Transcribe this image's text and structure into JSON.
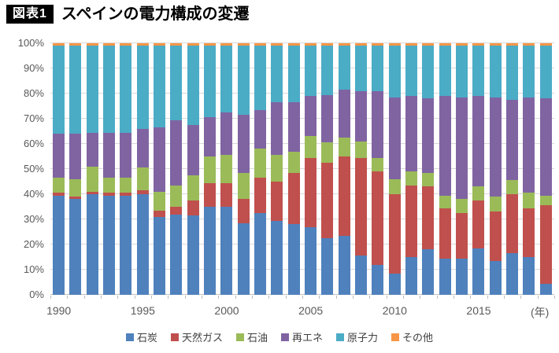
{
  "title": {
    "tag": "図表1",
    "text": "スペインの電力構成の変遷"
  },
  "chart_data": {
    "type": "bar",
    "stacked": true,
    "unit": "%",
    "grid": true,
    "legend_position": "bottom",
    "ylim": [
      0,
      100
    ],
    "y_ticks": [
      "0%",
      "10%",
      "20%",
      "30%",
      "40%",
      "50%",
      "60%",
      "70%",
      "80%",
      "90%",
      "100%"
    ],
    "x_axis_suffix": "(年)",
    "x_tick_labels": [
      "1990",
      "1995",
      "2000",
      "2005",
      "2010",
      "2015"
    ],
    "x_tick_positions": [
      0,
      5,
      10,
      15,
      20,
      25
    ],
    "categories": [
      1990,
      1991,
      1992,
      1993,
      1994,
      1995,
      1996,
      1997,
      1998,
      1999,
      2000,
      2001,
      2002,
      2003,
      2004,
      2005,
      2006,
      2007,
      2008,
      2009,
      2010,
      2011,
      2012,
      2013,
      2014,
      2015,
      2016,
      2017,
      2018,
      2019
    ],
    "series": [
      {
        "name": "石炭",
        "key": "coal",
        "color": "#4F81BD",
        "values": [
          39.5,
          38,
          40,
          39.5,
          39.5,
          40,
          31,
          32,
          31.5,
          35,
          35,
          28.5,
          32.5,
          29.5,
          28,
          27,
          22.5,
          23.5,
          15.5,
          12,
          8.5,
          15,
          18,
          14.5,
          14.5,
          18.5,
          13.5,
          16.5,
          15,
          4.5
        ]
      },
      {
        "name": "天然ガス",
        "key": "natural-gas",
        "color": "#C0504D",
        "values": [
          1,
          1,
          1,
          1,
          1,
          1.5,
          2.5,
          3,
          6,
          9.5,
          9.5,
          9.5,
          14,
          15.5,
          20.5,
          27.5,
          30,
          31.5,
          39,
          37,
          31.5,
          28.5,
          25,
          20,
          18,
          19,
          19.5,
          23.5,
          19.5,
          31
        ]
      },
      {
        "name": "石油",
        "key": "oil",
        "color": "#9BBB59",
        "values": [
          6,
          7,
          10,
          6,
          6,
          9,
          7.5,
          8.5,
          10,
          10.5,
          11,
          10.5,
          11.5,
          10.5,
          8.5,
          8.5,
          8,
          7.5,
          6.5,
          5.5,
          6,
          5.5,
          5.5,
          5,
          5.5,
          5.5,
          6,
          5.5,
          6,
          4
        ]
      },
      {
        "name": "再エネ",
        "key": "renewables",
        "color": "#8064A2",
        "values": [
          17.5,
          18,
          13.5,
          18,
          18,
          15.5,
          25.5,
          26,
          20,
          15.5,
          17,
          23,
          15.5,
          21,
          19.5,
          16,
          19,
          19,
          20,
          26.5,
          32.5,
          30,
          29.5,
          39.5,
          40.5,
          36,
          39.5,
          32,
          38,
          38.5
        ]
      },
      {
        "name": "原子力",
        "key": "nuclear",
        "color": "#4BACC6",
        "values": [
          35,
          35,
          34.5,
          34.5,
          34.5,
          33,
          32.5,
          29.5,
          31.5,
          28.5,
          26.5,
          27.5,
          25.5,
          22.5,
          22.5,
          20,
          19.5,
          17.5,
          18,
          18,
          20.5,
          20,
          21,
          20,
          20.5,
          20,
          20.5,
          21.5,
          20.5,
          21
        ]
      },
      {
        "name": "その他",
        "key": "other",
        "color": "#F79646",
        "values": [
          1,
          1,
          1,
          1,
          1,
          1,
          1,
          1,
          1,
          1,
          1,
          1,
          1,
          1,
          1,
          1,
          1,
          1,
          1,
          1,
          1,
          1,
          1,
          1,
          1,
          1,
          1,
          1,
          1,
          1
        ]
      }
    ],
    "style_colors": {
      "gridline": "#D9D9D9",
      "axis_labels": "#595959",
      "legend_text": "#404040"
    }
  }
}
